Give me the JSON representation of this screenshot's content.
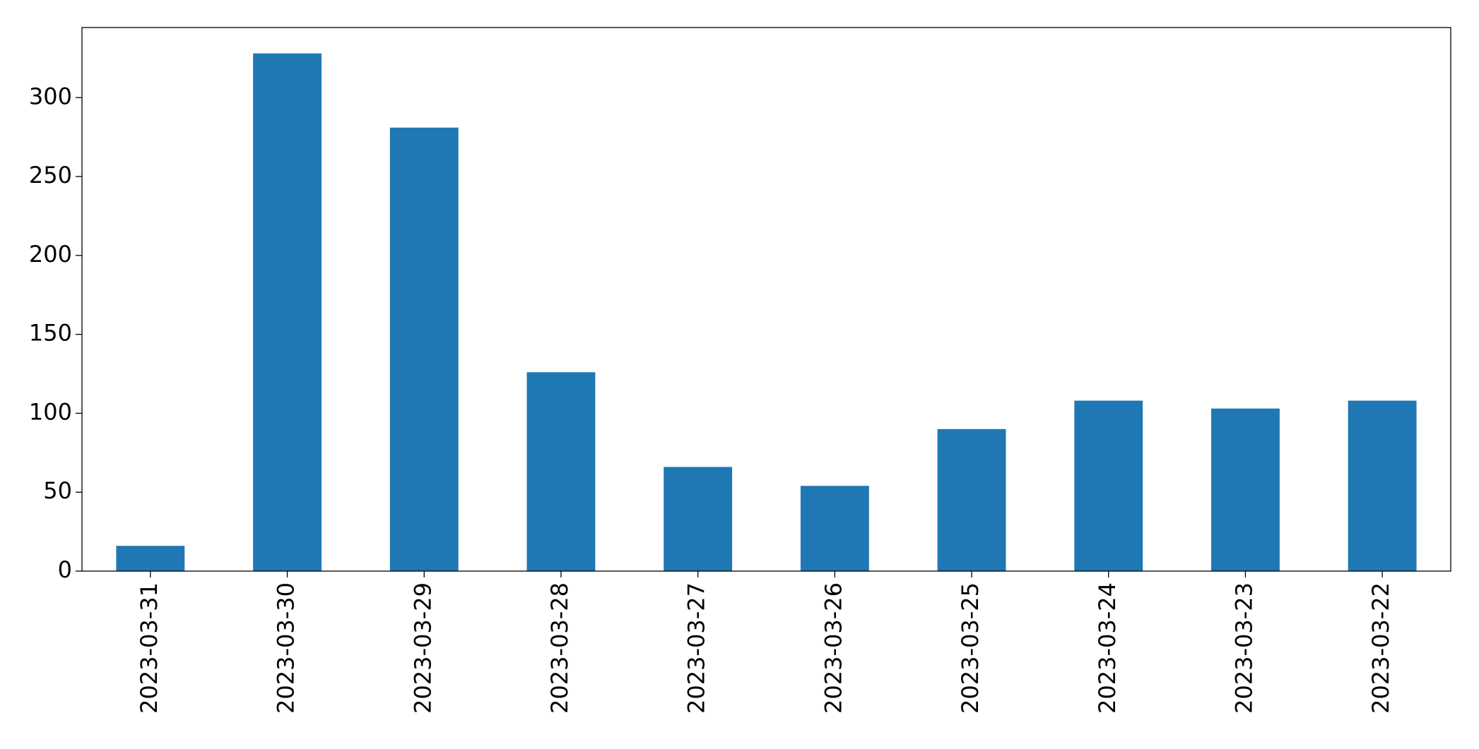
{
  "chart_data": {
    "type": "bar",
    "categories": [
      "2023-03-31",
      "2023-03-30",
      "2023-03-29",
      "2023-03-28",
      "2023-03-27",
      "2023-03-26",
      "2023-03-25",
      "2023-03-24",
      "2023-03-23",
      "2023-03-22"
    ],
    "values": [
      16,
      328,
      281,
      126,
      66,
      54,
      90,
      108,
      103,
      108
    ],
    "color": "#1f77b4",
    "ylim": [
      0,
      344.4
    ],
    "yticks": [
      0,
      50,
      100,
      150,
      200,
      250,
      300
    ],
    "grid": false
  }
}
